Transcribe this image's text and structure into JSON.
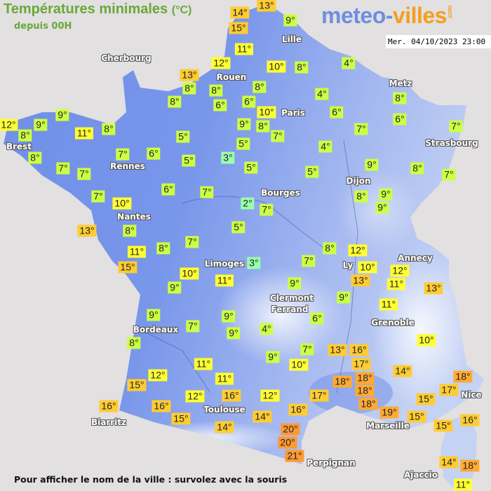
{
  "header": {
    "title": "Températures minimales",
    "unit": "(°C)",
    "subtitle": "depuis 00H"
  },
  "logo": {
    "part1": "meteo-",
    "part2": "villes",
    "suffix": ".com"
  },
  "timestamp": "Mer. 04/10/2023 23:00",
  "footer": "Pour afficher le nom de la ville : survolez avec la souris",
  "colors": {
    "land_west": "#6f8ee8",
    "land_east": "#b8c8f0",
    "sea": "#e2e0e0",
    "cold": "#99ffaa",
    "cool": "#ccff44",
    "mild": "#ffff33",
    "warm": "#ffcc33",
    "hot": "#ffaa33",
    "very_hot": "#ff9933"
  },
  "cities": [
    "Cherbourg",
    "Rouen",
    "Lille",
    "Paris",
    "Metz",
    "Strasbourg",
    "Brest",
    "Rennes",
    "Nantes",
    "Bourges",
    "Dijon",
    "Limoges",
    "Ly",
    "Annecy",
    "Clermont",
    "Ferrand",
    "Grenoble",
    "Bordeaux",
    "Toulouse",
    "Biarritz",
    "Marseille",
    "Nice",
    "Perpignan",
    "Ajaccio"
  ],
  "temperatures": [
    "14°",
    "13°",
    "15°",
    "9°",
    "11°",
    "12°",
    "10°",
    "8°",
    "4°",
    "13°",
    "8°",
    "8°",
    "8°",
    "8°",
    "6°",
    "6°",
    "4°",
    "10°",
    "6°",
    "8°",
    "6°",
    "12°",
    "8°",
    "9°",
    "9°",
    "11°",
    "8°",
    "9°",
    "8°",
    "7°",
    "7°",
    "7°",
    "5°",
    "5°",
    "4°",
    "7°",
    "6°",
    "5°",
    "3°",
    "5°",
    "8°",
    "7°",
    "7°",
    "5°",
    "9°",
    "8°",
    "7°",
    "6°",
    "7°",
    "7°",
    "10°",
    "2°",
    "7°",
    "8°",
    "9°",
    "9°",
    "13°",
    "8°",
    "5°",
    "8°",
    "7°",
    "11°",
    "15°",
    "8°",
    "12°",
    "3°",
    "7°",
    "10°",
    "12°",
    "13°",
    "11°",
    "13°",
    "10°",
    "11°",
    "9°",
    "9°",
    "9°",
    "11°",
    "9°",
    "7°",
    "9°",
    "9°",
    "6°",
    "4°",
    "8°",
    "10°",
    "7°",
    "13°",
    "16°",
    "9°",
    "10°",
    "17°",
    "11°",
    "14°",
    "12°",
    "11°",
    "18°",
    "18°",
    "18°",
    "15°",
    "16°",
    "12°",
    "12°",
    "17°",
    "18°",
    "17°",
    "18°",
    "19°",
    "15°",
    "16°",
    "16°",
    "15°",
    "16°",
    "15°",
    "15°",
    "16°",
    "14°",
    "14°",
    "20°",
    "20°",
    "21°",
    "14°",
    "18°",
    "11°"
  ]
}
